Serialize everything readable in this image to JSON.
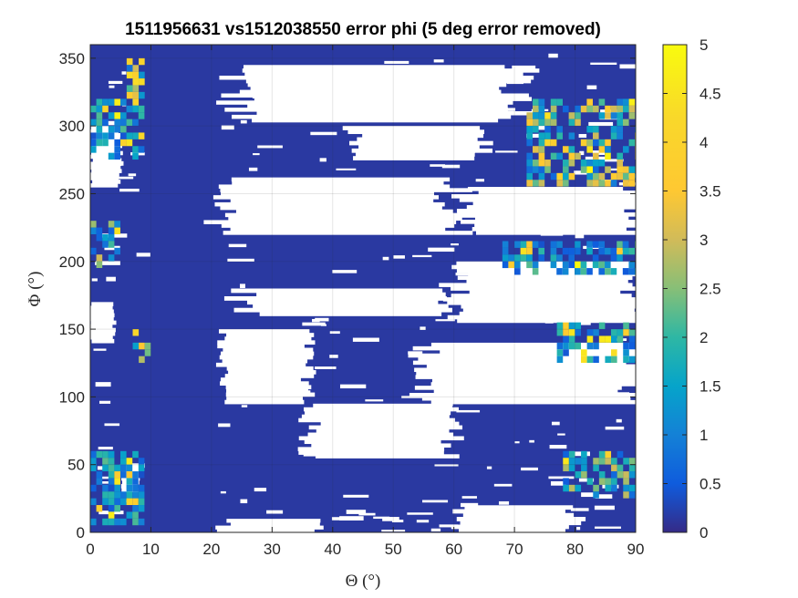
{
  "chart_data": {
    "type": "heatmap",
    "title": "1511956631 vs1512038550 error phi (5 deg error removed)",
    "xlabel": "Θ (°)",
    "ylabel": "Φ (°)",
    "xlim": [
      0,
      90
    ],
    "ylim": [
      0,
      360
    ],
    "x_ticks": [
      0,
      10,
      20,
      30,
      40,
      50,
      60,
      70,
      80,
      90
    ],
    "y_ticks": [
      0,
      50,
      100,
      150,
      200,
      250,
      300,
      350
    ],
    "colorbar": {
      "limits": [
        0,
        5
      ],
      "ticks": [
        0,
        0.5,
        1,
        1.5,
        2,
        2.5,
        3,
        3.5,
        4,
        4.5,
        5
      ],
      "colormap": "parula"
    },
    "grid": true,
    "background_value_description": "error near 0 (dark blue) over most of the domain; white = no data",
    "no_data_regions": [
      {
        "theta": [
          24,
          70
        ],
        "phi": [
          303,
          345
        ]
      },
      {
        "theta": [
          43,
          65
        ],
        "phi": [
          275,
          300
        ]
      },
      {
        "theta": [
          22,
          60
        ],
        "phi": [
          220,
          262
        ]
      },
      {
        "theta": [
          25,
          58
        ],
        "phi": [
          160,
          180
        ]
      },
      {
        "theta": [
          22,
          36
        ],
        "phi": [
          95,
          150
        ]
      },
      {
        "theta": [
          36,
          60
        ],
        "phi": [
          55,
          95
        ]
      },
      {
        "theta": [
          55,
          90
        ],
        "phi": [
          95,
          140
        ]
      },
      {
        "theta": [
          60,
          90
        ],
        "phi": [
          155,
          200
        ]
      },
      {
        "theta": [
          62,
          90
        ],
        "phi": [
          220,
          255
        ]
      },
      {
        "theta": [
          0,
          4
        ],
        "phi": [
          140,
          170
        ]
      },
      {
        "theta": [
          0,
          5
        ],
        "phi": [
          255,
          300
        ]
      },
      {
        "theta": [
          5,
          8
        ],
        "phi": [
          30,
          50
        ]
      },
      {
        "theta": [
          22,
          38
        ],
        "phi": [
          0,
          10
        ]
      },
      {
        "theta": [
          60,
          80
        ],
        "phi": [
          0,
          20
        ]
      }
    ],
    "high_error_regions": [
      {
        "theta": [
          72,
          90
        ],
        "phi": [
          260,
          320
        ],
        "value": 2.5
      },
      {
        "theta": [
          68,
          90
        ],
        "phi": [
          195,
          215
        ],
        "value": 1.5
      },
      {
        "theta": [
          77,
          90
        ],
        "phi": [
          130,
          155
        ],
        "value": 1.5
      },
      {
        "theta": [
          78,
          90
        ],
        "phi": [
          30,
          60
        ],
        "value": 2.0
      },
      {
        "theta": [
          0,
          8
        ],
        "phi": [
          280,
          320
        ],
        "value": 1.5
      },
      {
        "theta": [
          6,
          8
        ],
        "phi": [
          320,
          350
        ],
        "value": 3.0
      },
      {
        "theta": [
          0,
          8
        ],
        "phi": [
          10,
          60
        ],
        "value": 1.5
      },
      {
        "theta": [
          7,
          9
        ],
        "phi": [
          130,
          150
        ],
        "value": 2.5
      },
      {
        "theta": [
          0,
          4
        ],
        "phi": [
          200,
          230
        ],
        "value": 2.0
      }
    ]
  }
}
